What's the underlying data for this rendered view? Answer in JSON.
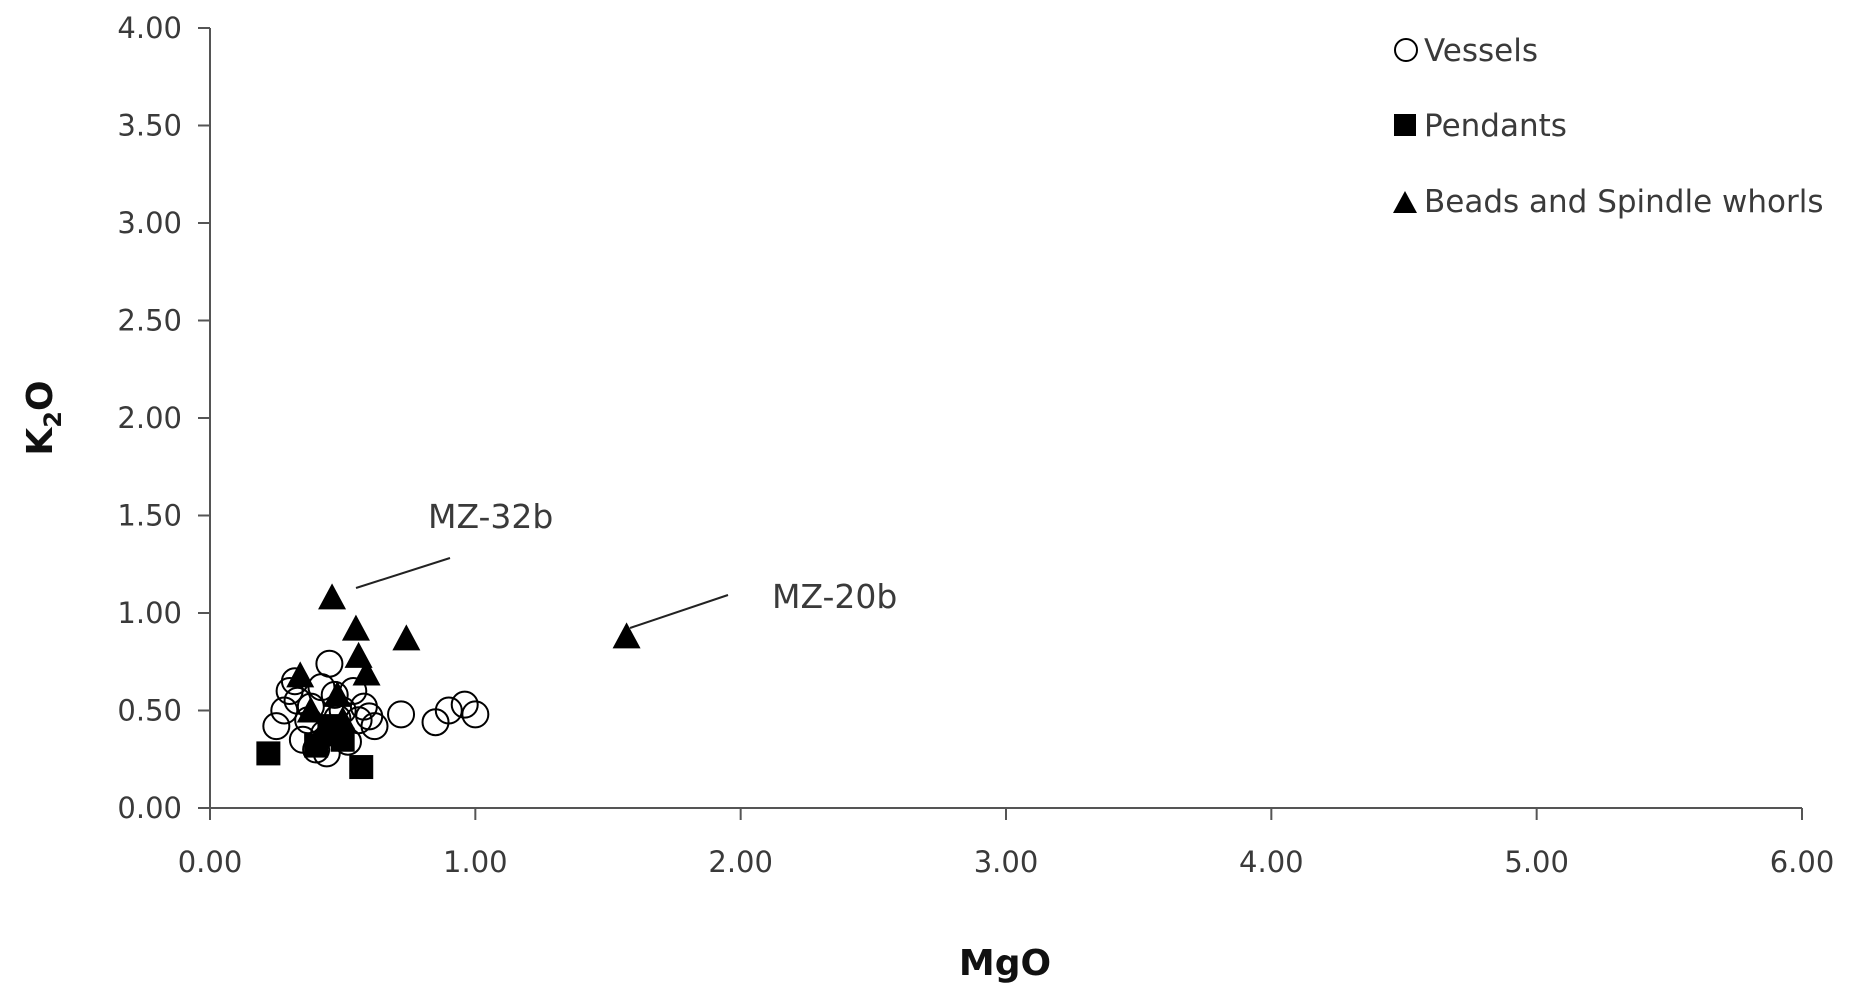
{
  "chart_data": {
    "type": "scatter",
    "title": "",
    "xlabel": "MgO",
    "ylabel_main": "K",
    "ylabel_sub": "2",
    "ylabel_end": "O",
    "xlim": [
      0,
      6
    ],
    "ylim": [
      0,
      4
    ],
    "x_ticks": [
      "0.00",
      "1.00",
      "2.00",
      "3.00",
      "4.00",
      "5.00",
      "6.00"
    ],
    "y_ticks": [
      "0.00",
      "0.50",
      "1.00",
      "1.50",
      "2.00",
      "2.50",
      "3.00",
      "3.50",
      "4.00"
    ],
    "grid": false,
    "legend_position": "top-right",
    "series": [
      {
        "name": "Vessels",
        "marker": "circle-open",
        "color": "#000000",
        "points": [
          [
            0.25,
            0.42
          ],
          [
            0.28,
            0.5
          ],
          [
            0.3,
            0.6
          ],
          [
            0.32,
            0.65
          ],
          [
            0.33,
            0.55
          ],
          [
            0.35,
            0.35
          ],
          [
            0.37,
            0.45
          ],
          [
            0.38,
            0.52
          ],
          [
            0.4,
            0.3
          ],
          [
            0.42,
            0.62
          ],
          [
            0.43,
            0.38
          ],
          [
            0.44,
            0.28
          ],
          [
            0.45,
            0.74
          ],
          [
            0.47,
            0.58
          ],
          [
            0.48,
            0.46
          ],
          [
            0.5,
            0.5
          ],
          [
            0.52,
            0.34
          ],
          [
            0.54,
            0.6
          ],
          [
            0.56,
            0.45
          ],
          [
            0.58,
            0.52
          ],
          [
            0.6,
            0.47
          ],
          [
            0.62,
            0.42
          ],
          [
            0.72,
            0.48
          ],
          [
            0.85,
            0.44
          ],
          [
            0.9,
            0.5
          ],
          [
            0.96,
            0.53
          ],
          [
            1.0,
            0.48
          ]
        ]
      },
      {
        "name": "Pendants",
        "marker": "square-filled",
        "color": "#000000",
        "points": [
          [
            0.22,
            0.28
          ],
          [
            0.4,
            0.32
          ],
          [
            0.45,
            0.42
          ],
          [
            0.5,
            0.35
          ],
          [
            0.57,
            0.21
          ]
        ]
      },
      {
        "name": "Beads and Spindle whorls",
        "marker": "triangle-filled",
        "color": "#000000",
        "points": [
          [
            0.34,
            0.68
          ],
          [
            0.38,
            0.5
          ],
          [
            0.42,
            0.38
          ],
          [
            0.46,
            1.08
          ],
          [
            0.48,
            0.58
          ],
          [
            0.5,
            0.45
          ],
          [
            0.55,
            0.92
          ],
          [
            0.56,
            0.78
          ],
          [
            0.59,
            0.69
          ],
          [
            0.74,
            0.87
          ],
          [
            1.57,
            0.88
          ]
        ]
      }
    ],
    "annotations": [
      {
        "text": "MZ-32b",
        "target": [
          0.46,
          1.08
        ]
      },
      {
        "text": "MZ-20b",
        "target": [
          1.57,
          0.88
        ]
      }
    ]
  }
}
